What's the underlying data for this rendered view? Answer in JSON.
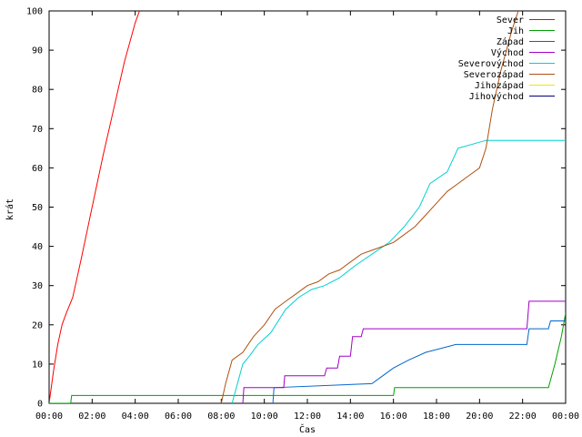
{
  "chart_data": {
    "type": "line",
    "title": "",
    "xlabel": "Čas",
    "ylabel": "krát",
    "xlim": [
      0,
      24
    ],
    "ylim": [
      0,
      100
    ],
    "x_ticks": [
      {
        "value": 0,
        "label": "00:00"
      },
      {
        "value": 2,
        "label": "02:00"
      },
      {
        "value": 4,
        "label": "04:00"
      },
      {
        "value": 6,
        "label": "06:00"
      },
      {
        "value": 8,
        "label": "08:00"
      },
      {
        "value": 10,
        "label": "10:00"
      },
      {
        "value": 12,
        "label": "12:00"
      },
      {
        "value": 14,
        "label": "14:00"
      },
      {
        "value": 16,
        "label": "16:00"
      },
      {
        "value": 18,
        "label": "18:00"
      },
      {
        "value": 20,
        "label": "20:00"
      },
      {
        "value": 22,
        "label": "22:00"
      },
      {
        "value": 24,
        "label": "00:00"
      }
    ],
    "y_ticks": [
      {
        "value": 0,
        "label": "0"
      },
      {
        "value": 10,
        "label": "10"
      },
      {
        "value": 20,
        "label": "20"
      },
      {
        "value": 30,
        "label": "30"
      },
      {
        "value": 40,
        "label": "40"
      },
      {
        "value": 50,
        "label": "50"
      },
      {
        "value": 60,
        "label": "60"
      },
      {
        "value": 70,
        "label": "70"
      },
      {
        "value": 80,
        "label": "80"
      },
      {
        "value": 90,
        "label": "90"
      },
      {
        "value": 100,
        "label": "100"
      }
    ],
    "grid": false,
    "legend_position": "top-right",
    "series": [
      {
        "name": "Sever",
        "color": "#ff0000",
        "x": [
          0,
          0.2,
          0.4,
          0.6,
          0.8,
          1.1,
          1.5,
          2.0,
          2.5,
          3.0,
          3.5,
          4.0,
          4.2
        ],
        "y": [
          0,
          8,
          15,
          20,
          23,
          27,
          37,
          50,
          63,
          75,
          87,
          97,
          100
        ]
      },
      {
        "name": "Jih",
        "color": "#00a000",
        "x": [
          0,
          1.0,
          1.05,
          16.0,
          16.05,
          23.2,
          23.5,
          23.8,
          24.0
        ],
        "y": [
          0,
          0,
          2,
          2,
          4,
          4,
          10,
          17,
          23
        ]
      },
      {
        "name": "Západ",
        "color": "#0066cc",
        "x": [
          10.4,
          10.45,
          15.0,
          15.5,
          16.0,
          16.7,
          17.5,
          18.9,
          22.2,
          22.3,
          23.2,
          23.3,
          24.0
        ],
        "y": [
          0,
          4,
          5,
          7,
          9,
          11,
          13,
          15,
          15,
          19,
          19,
          21,
          21
        ]
      },
      {
        "name": "Východ",
        "color": "#a000c8",
        "x": [
          9.0,
          9.05,
          10.9,
          10.95,
          12.8,
          12.9,
          13.4,
          13.5,
          14.0,
          14.1,
          14.5,
          14.6,
          22.2,
          22.3,
          24.0
        ],
        "y": [
          0,
          4,
          4,
          7,
          7,
          9,
          9,
          12,
          12,
          17,
          17,
          19,
          19,
          26,
          26
        ]
      },
      {
        "name": "Severovýchod",
        "color": "#00d0d0",
        "x": [
          8.5,
          9.0,
          9.3,
          9.7,
          10.3,
          11.0,
          11.6,
          12.2,
          12.8,
          13.5,
          14.2,
          15.0,
          15.8,
          16.5,
          17.2,
          17.7,
          18.5,
          19.0,
          20.3,
          24.0
        ],
        "y": [
          0,
          10,
          12,
          15,
          18,
          24,
          27,
          29,
          30,
          32,
          35,
          38,
          41,
          45,
          50,
          56,
          59,
          65,
          67,
          67
        ]
      },
      {
        "name": "Severozápad",
        "color": "#b05010",
        "x": [
          8.0,
          8.2,
          8.5,
          9.0,
          9.5,
          10.0,
          10.5,
          11.0,
          11.5,
          12.0,
          12.5,
          13.0,
          13.5,
          14.0,
          14.5,
          15.0,
          15.5,
          16.0,
          16.5,
          17.0,
          17.5,
          18.0,
          18.5,
          19.0,
          19.5,
          20.0,
          20.3,
          20.6,
          21.0,
          21.5,
          21.8
        ],
        "y": [
          0,
          5,
          11,
          13,
          17,
          20,
          24,
          26,
          28,
          30,
          31,
          33,
          34,
          36,
          38,
          39,
          40,
          41,
          43,
          45,
          48,
          51,
          54,
          56,
          58,
          60,
          65,
          75,
          85,
          95,
          100
        ]
      },
      {
        "name": "Jihozápad",
        "color": "#e8e800",
        "x": [],
        "y": []
      },
      {
        "name": "Jihovýchod",
        "color": "#000080",
        "x": [],
        "y": []
      }
    ]
  }
}
